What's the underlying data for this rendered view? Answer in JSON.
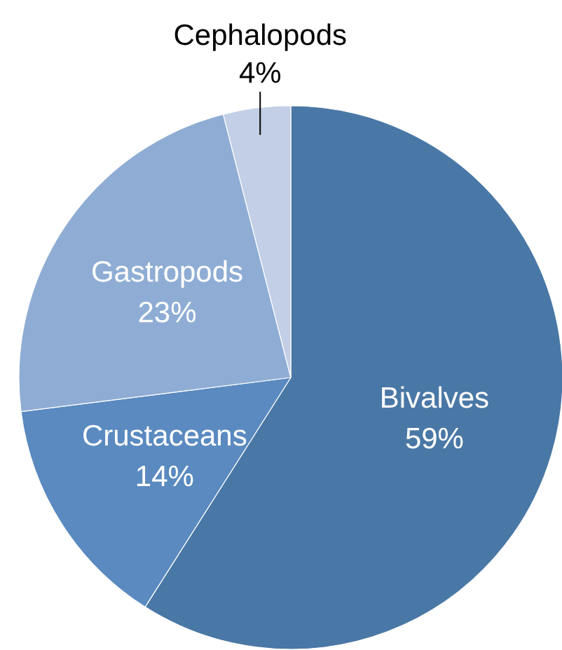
{
  "chart_data": {
    "type": "pie",
    "categories": [
      "Bivalves",
      "Crustaceans",
      "Gastropods",
      "Cephalopods"
    ],
    "values": [
      59,
      14,
      23,
      4
    ],
    "colors": [
      "#4a78a6",
      "#5a8ac0",
      "#8fadd4",
      "#c2cfe6"
    ],
    "value_labels": [
      "59%",
      "14%",
      "23%",
      "4%"
    ]
  }
}
